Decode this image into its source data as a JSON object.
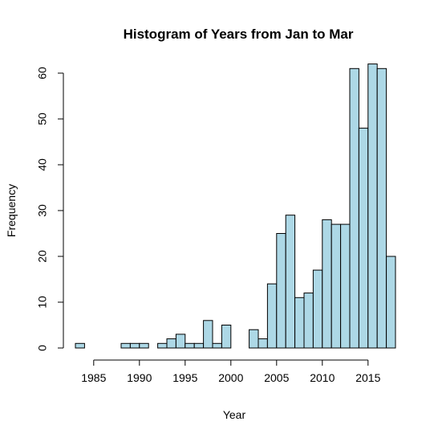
{
  "chart_data": {
    "type": "bar",
    "title": "Histogram of Years from Jan to Mar",
    "xlabel": "Year",
    "ylabel": "Frequency",
    "bin_width": 1,
    "bins": [
      {
        "start": 1983,
        "count": 1
      },
      {
        "start": 1984,
        "count": 0
      },
      {
        "start": 1985,
        "count": 0
      },
      {
        "start": 1986,
        "count": 0
      },
      {
        "start": 1987,
        "count": 0
      },
      {
        "start": 1988,
        "count": 1
      },
      {
        "start": 1989,
        "count": 1
      },
      {
        "start": 1990,
        "count": 1
      },
      {
        "start": 1991,
        "count": 0
      },
      {
        "start": 1992,
        "count": 1
      },
      {
        "start": 1993,
        "count": 2
      },
      {
        "start": 1994,
        "count": 3
      },
      {
        "start": 1995,
        "count": 1
      },
      {
        "start": 1996,
        "count": 1
      },
      {
        "start": 1997,
        "count": 6
      },
      {
        "start": 1998,
        "count": 1
      },
      {
        "start": 1999,
        "count": 5
      },
      {
        "start": 2000,
        "count": 0
      },
      {
        "start": 2001,
        "count": 0
      },
      {
        "start": 2002,
        "count": 4
      },
      {
        "start": 2003,
        "count": 2
      },
      {
        "start": 2004,
        "count": 14
      },
      {
        "start": 2005,
        "count": 25
      },
      {
        "start": 2006,
        "count": 29
      },
      {
        "start": 2007,
        "count": 11
      },
      {
        "start": 2008,
        "count": 12
      },
      {
        "start": 2009,
        "count": 17
      },
      {
        "start": 2010,
        "count": 28
      },
      {
        "start": 2011,
        "count": 27
      },
      {
        "start": 2012,
        "count": 27
      },
      {
        "start": 2013,
        "count": 61
      },
      {
        "start": 2014,
        "count": 48
      },
      {
        "start": 2015,
        "count": 62
      },
      {
        "start": 2016,
        "count": 61
      },
      {
        "start": 2017,
        "count": 20
      }
    ],
    "xlim": [
      1983,
      2018
    ],
    "ylim": [
      0,
      62
    ],
    "x_ticks": [
      "1985",
      "1990",
      "1995",
      "2000",
      "2005",
      "2010",
      "2015"
    ],
    "y_ticks": [
      "0",
      "10",
      "20",
      "30",
      "40",
      "50",
      "60"
    ],
    "grid": false,
    "legend": "none",
    "colors": {
      "bar_fill": "#add8e6",
      "bar_stroke": "#000000"
    }
  }
}
